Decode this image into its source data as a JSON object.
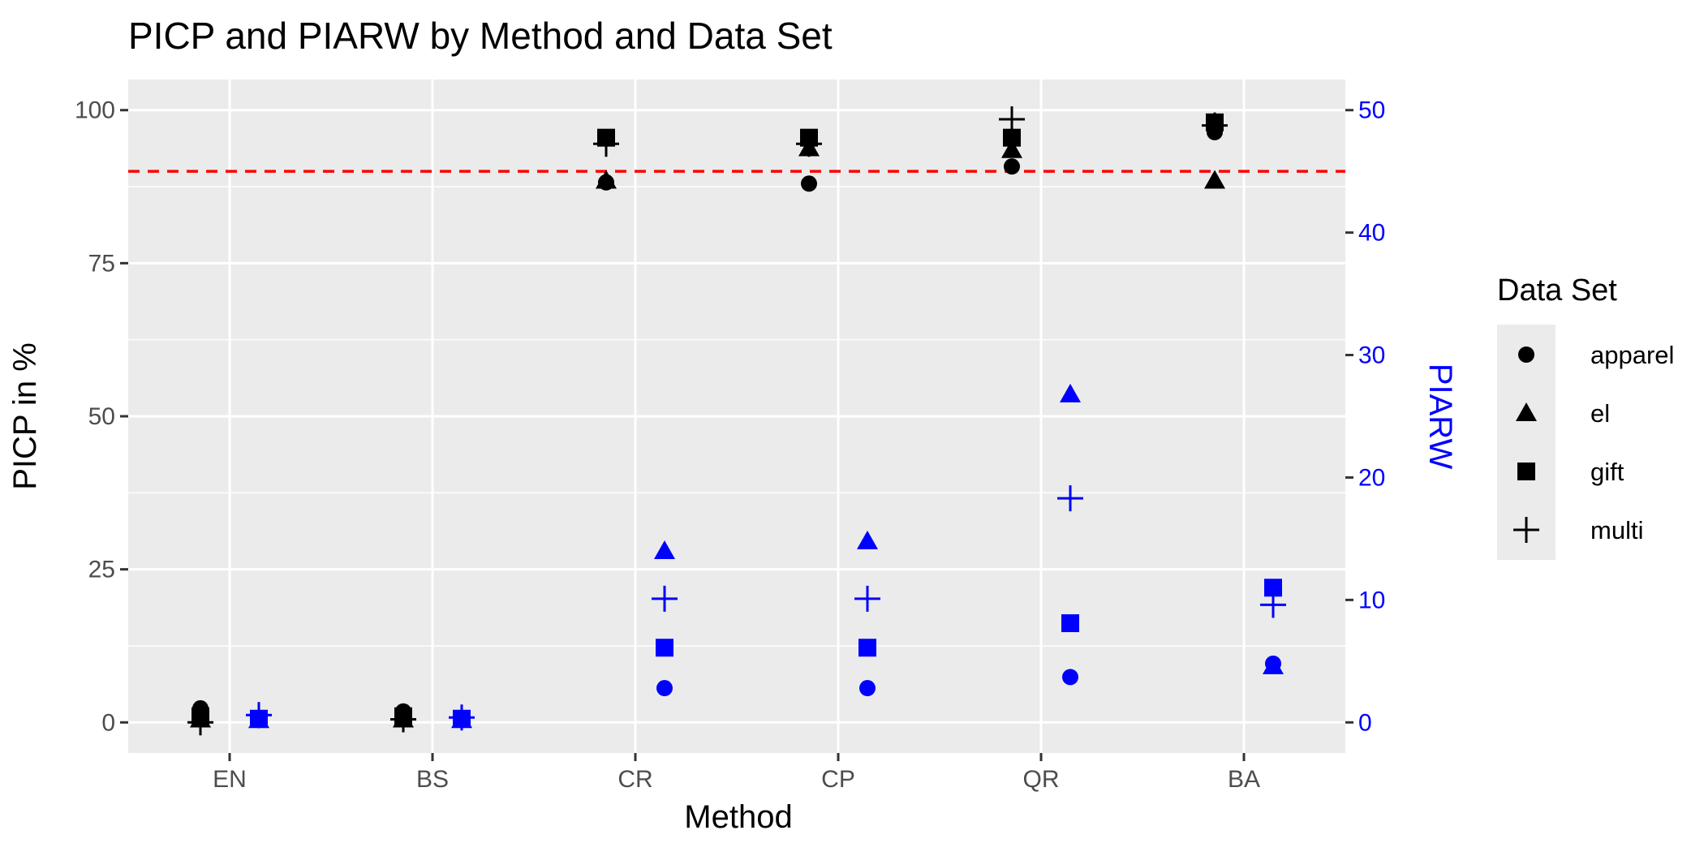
{
  "chart_data": {
    "type": "scatter",
    "title": "PICP and PIARW by Method and Data Set",
    "xlabel": "Method",
    "ylabel": "PICP in %",
    "y2label": "PIARW",
    "categories": [
      "EN",
      "BS",
      "CR",
      "CP",
      "QR",
      "BA"
    ],
    "ylim": [
      -5,
      105
    ],
    "yticks": [
      0,
      25,
      50,
      75,
      100
    ],
    "y2lim": [
      -2.5,
      52.5
    ],
    "y2ticks": [
      0,
      10,
      20,
      30,
      40,
      50
    ],
    "reference_line": {
      "y": 90,
      "color": "#ff0000",
      "style": "dashed"
    },
    "colors": {
      "picp": "#000000",
      "piarw": "#0000ff",
      "panel": "#ebebeb",
      "grid": "#ffffff"
    },
    "legend": {
      "title": "Data Set",
      "position": "right",
      "entries": [
        {
          "label": "apparel",
          "shape": "circle"
        },
        {
          "label": "el",
          "shape": "triangle"
        },
        {
          "label": "gift",
          "shape": "square"
        },
        {
          "label": "multi",
          "shape": "plus"
        }
      ]
    },
    "series": [
      {
        "metric": "PICP",
        "dataset": "apparel",
        "shape": "circle",
        "values": [
          2.3,
          1.8,
          88.2,
          88.0,
          90.8,
          96.4
        ]
      },
      {
        "metric": "PICP",
        "dataset": "el",
        "shape": "triangle",
        "values": [
          0.5,
          0.5,
          88.5,
          93.8,
          93.5,
          88.5
        ]
      },
      {
        "metric": "PICP",
        "dataset": "gift",
        "shape": "square",
        "values": [
          1.0,
          1.0,
          95.5,
          95.5,
          95.5,
          98.0
        ]
      },
      {
        "metric": "PICP",
        "dataset": "multi",
        "shape": "plus",
        "values": [
          0.0,
          0.5,
          94.5,
          94.5,
          98.5,
          97.5
        ]
      },
      {
        "metric": "PIARW",
        "dataset": "apparel",
        "shape": "circle",
        "values": [
          0.2,
          0.2,
          2.8,
          2.8,
          3.7,
          4.8
        ]
      },
      {
        "metric": "PIARW",
        "dataset": "el",
        "shape": "triangle",
        "values": [
          0.2,
          0.2,
          14.0,
          14.8,
          26.8,
          4.6
        ]
      },
      {
        "metric": "PIARW",
        "dataset": "gift",
        "shape": "square",
        "values": [
          0.3,
          0.3,
          6.1,
          6.1,
          8.1,
          11.0
        ]
      },
      {
        "metric": "PIARW",
        "dataset": "multi",
        "shape": "plus",
        "values": [
          0.6,
          0.4,
          10.1,
          10.1,
          18.3,
          9.6
        ]
      }
    ]
  }
}
